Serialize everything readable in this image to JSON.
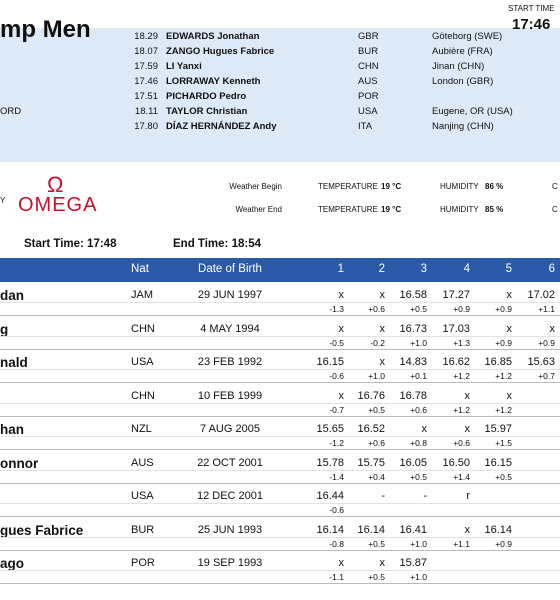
{
  "header": {
    "title": "mp Men",
    "start_label": "START TIME",
    "start_time": "17:46"
  },
  "records": [
    {
      "mark": "18.29",
      "name": "EDWARDS Jonathan",
      "nat": "GBR",
      "venue": "Göteborg (SWE)"
    },
    {
      "mark": "18.07",
      "name": "ZANGO Hugues Fabrice",
      "nat": "BUR",
      "venue": "Aubière (FRA)"
    },
    {
      "mark": "17.59",
      "name": "LI Yanxi",
      "nat": "CHN",
      "venue": "Jinan (CHN)"
    },
    {
      "mark": "17.46",
      "name": "LORRAWAY Kenneth",
      "nat": "AUS",
      "venue": "London (GBR)"
    },
    {
      "mark": "17.51",
      "name": "PICHARDO Pedro",
      "nat": "POR"
    },
    {
      "label": "ORD",
      "mark": "18.11",
      "name": "TAYLOR Christian",
      "nat": "USA",
      "venue": "Eugene, OR (USA)"
    },
    {
      "mark": "17.80",
      "name": "DÍAZ HERNÁNDEZ Andy",
      "nat": "ITA",
      "venue": "Nanjing (CHN)"
    }
  ],
  "timing": {
    "by": "Y",
    "logo_symbol": "Ω",
    "logo_text": "OMEGA"
  },
  "weather": [
    {
      "label": "Weather Begin",
      "temp_label": "TEMPERATURE",
      "temp": "19 °C",
      "hum_label": "HUMIDITY",
      "hum": "86 %",
      "extra": "C"
    },
    {
      "label": "Weather End",
      "temp_label": "TEMPERATURE",
      "temp": "19 °C",
      "hum_label": "HUMIDITY",
      "hum": "85 %",
      "extra": "C"
    }
  ],
  "times": {
    "start": "Start Time: 17:48",
    "end": "End Time: 18:54"
  },
  "table": {
    "columns": [
      "Nat",
      "Date of Birth",
      "1",
      "2",
      "3",
      "4",
      "5",
      "6"
    ],
    "rows": [
      {
        "name": "dan",
        "nat": "JAM",
        "dob": "29 JUN 1997",
        "marks": [
          "x",
          "x",
          "16.58",
          "17.27",
          "x",
          "17.02"
        ],
        "winds": [
          "-1.3",
          "+0.6",
          "+0.5",
          "+0.9",
          "+0.9",
          "+1.1"
        ]
      },
      {
        "name": "g",
        "nat": "CHN",
        "dob": "4 MAY 1994",
        "marks": [
          "x",
          "x",
          "16.73",
          "17.03",
          "x",
          "x"
        ],
        "winds": [
          "-0.5",
          "-0.2",
          "+1.0",
          "+1.3",
          "+0.9",
          "+0.9"
        ]
      },
      {
        "name": "nald",
        "nat": "USA",
        "dob": "23 FEB 1992",
        "marks": [
          "16.15",
          "x",
          "14.83",
          "16.62",
          "16.85",
          "15.63"
        ],
        "winds": [
          "-0.6",
          "+1.0",
          "+0.1",
          "+1.2",
          "+1.2",
          "+0.7"
        ]
      },
      {
        "nat": "CHN",
        "dob": "10 FEB 1999",
        "marks": [
          "x",
          "16.76",
          "16.78",
          "x",
          "x"
        ],
        "winds": [
          "-0.7",
          "+0.5",
          "+0.6",
          "+1.2",
          "+1.2"
        ]
      },
      {
        "name": "han",
        "nat": "NZL",
        "dob": "7 AUG 2005",
        "marks": [
          "15.65",
          "16.52",
          "x",
          "x",
          "15.97"
        ],
        "winds": [
          "-1.2",
          "+0.6",
          "+0.8",
          "+0.6",
          "+1.5"
        ]
      },
      {
        "name": "onnor",
        "nat": "AUS",
        "dob": "22 OCT 2001",
        "marks": [
          "15.78",
          "15.75",
          "16.05",
          "16.50",
          "16.15"
        ],
        "winds": [
          "-1.4",
          "+0.4",
          "+0.5",
          "+1.4",
          "+0.5"
        ]
      },
      {
        "nat": "USA",
        "dob": "12 DEC 2001",
        "marks": [
          "16.44",
          "-",
          "-",
          "r"
        ],
        "winds": [
          "-0.6"
        ]
      },
      {
        "name": "gues Fabrice",
        "nat": "BUR",
        "dob": "25 JUN 1993",
        "marks": [
          "16.14",
          "16.14",
          "16.41",
          "x",
          "16.14"
        ],
        "winds": [
          "-0.8",
          "+0.5",
          "+1.0",
          "+1.1",
          "+0.9"
        ]
      },
      {
        "name": "ago",
        "nat": "POR",
        "dob": "19 SEP 1993",
        "marks": [
          "x",
          "x",
          "15.87"
        ],
        "winds": [
          "-1.1",
          "+0.5",
          "+1.0"
        ]
      }
    ]
  }
}
